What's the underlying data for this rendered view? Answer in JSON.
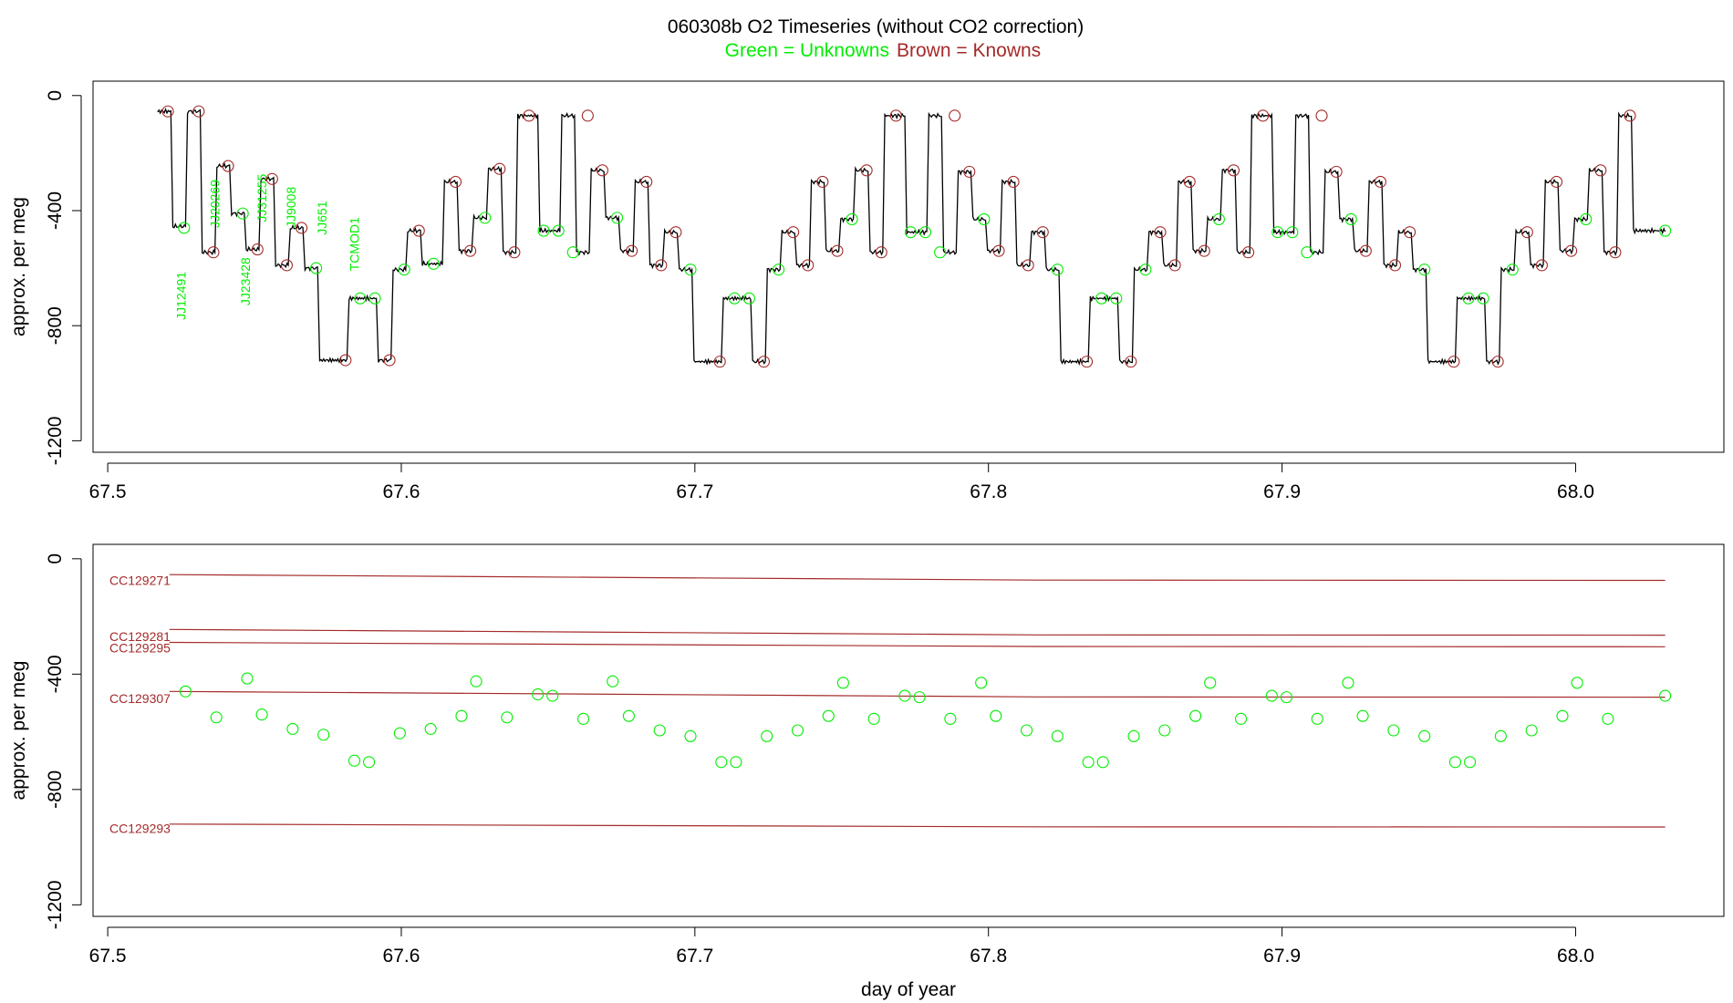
{
  "title": {
    "main": "060308b   O2 Timeseries (without CO2 correction)",
    "legend_unknowns": "Green = Unknowns",
    "legend_knowns": "Brown = Knowns"
  },
  "colors": {
    "unknown": "#00ee00",
    "known": "#a52a2a",
    "trace": "#000000",
    "axis": "#000000"
  },
  "chart_data": [
    {
      "type": "line",
      "title": "060308b   O2 Timeseries (without CO2 correction)",
      "ylabel": "approx. per meg",
      "xlabel": "",
      "xlim": [
        67.495,
        68.0505
      ],
      "ylim": [
        -1240,
        50
      ],
      "xticks": [
        67.5,
        67.6,
        67.7,
        67.8,
        67.9,
        68.0
      ],
      "xtick_labels": [
        "67.5",
        "67.6",
        "67.7",
        "67.8",
        "67.9",
        "68.0"
      ],
      "yticks": [
        0,
        -400,
        -800,
        -1200
      ],
      "ytick_labels": [
        "0",
        "-400",
        "-800",
        "-1200"
      ],
      "grid": false,
      "trace_schedule": [
        [
          67.517,
          -55
        ],
        [
          67.5215,
          -455
        ],
        [
          67.5265,
          -55
        ],
        [
          67.5315,
          -545
        ],
        [
          67.5365,
          -245
        ],
        [
          67.5415,
          -410
        ],
        [
          67.5465,
          -535
        ],
        [
          67.5515,
          -290
        ],
        [
          67.5565,
          -590
        ],
        [
          67.5615,
          -460
        ],
        [
          67.5665,
          -600
        ],
        [
          67.5715,
          -920
        ],
        [
          67.5815,
          -705
        ],
        [
          67.5915,
          -920
        ],
        [
          67.5965,
          -605
        ],
        [
          67.6015,
          -470
        ],
        [
          67.6065,
          -585
        ],
        [
          67.614,
          -300
        ],
        [
          67.619,
          -540
        ],
        [
          67.624,
          -425
        ],
        [
          67.629,
          -255
        ],
        [
          67.634,
          -545
        ],
        [
          67.639,
          -70
        ],
        [
          67.6465,
          -470
        ],
        [
          67.654,
          -70
        ],
        [
          67.659,
          -545
        ],
        [
          67.664,
          -260
        ],
        [
          67.669,
          -425
        ],
        [
          67.674,
          -540
        ],
        [
          67.679,
          -300
        ],
        [
          67.684,
          -590
        ],
        [
          67.689,
          -475
        ],
        [
          67.694,
          -605
        ],
        [
          67.699,
          -925
        ],
        [
          67.709,
          -705
        ],
        [
          67.719,
          -925
        ],
        [
          67.724,
          -605
        ],
        [
          67.729,
          -475
        ],
        [
          67.734,
          -590
        ],
        [
          67.739,
          -300
        ],
        [
          67.744,
          -540
        ],
        [
          67.749,
          -430
        ],
        [
          67.754,
          -260
        ],
        [
          67.759,
          -545
        ],
        [
          67.764,
          -70
        ],
        [
          67.7715,
          -475
        ],
        [
          67.779,
          -70
        ],
        [
          67.784,
          -545
        ],
        [
          67.789,
          -265
        ],
        [
          67.794,
          -430
        ],
        [
          67.799,
          -540
        ],
        [
          67.804,
          -300
        ],
        [
          67.809,
          -590
        ],
        [
          67.814,
          -475
        ],
        [
          67.819,
          -605
        ],
        [
          67.824,
          -925
        ],
        [
          67.834,
          -705
        ],
        [
          67.844,
          -925
        ],
        [
          67.849,
          -605
        ],
        [
          67.854,
          -475
        ],
        [
          67.859,
          -590
        ],
        [
          67.864,
          -300
        ],
        [
          67.869,
          -540
        ],
        [
          67.874,
          -430
        ],
        [
          67.879,
          -260
        ],
        [
          67.884,
          -545
        ],
        [
          67.889,
          -70
        ],
        [
          67.8965,
          -475
        ],
        [
          67.904,
          -70
        ],
        [
          67.909,
          -545
        ],
        [
          67.914,
          -265
        ],
        [
          67.919,
          -430
        ],
        [
          67.924,
          -540
        ],
        [
          67.929,
          -300
        ],
        [
          67.934,
          -590
        ],
        [
          67.939,
          -475
        ],
        [
          67.944,
          -605
        ],
        [
          67.949,
          -925
        ],
        [
          67.959,
          -705
        ],
        [
          67.969,
          -925
        ],
        [
          67.974,
          -605
        ],
        [
          67.979,
          -475
        ],
        [
          67.984,
          -590
        ],
        [
          67.989,
          -300
        ],
        [
          67.994,
          -540
        ],
        [
          67.999,
          -430
        ],
        [
          68.004,
          -260
        ],
        [
          68.009,
          -545
        ],
        [
          68.014,
          -70
        ],
        [
          68.019,
          -470
        ],
        [
          68.0305,
          -470
        ]
      ],
      "known_points": [
        {
          "x": 67.5205,
          "y": -55
        },
        {
          "x": 67.531,
          "y": -55
        },
        {
          "x": 67.536,
          "y": -545
        },
        {
          "x": 67.541,
          "y": -245
        },
        {
          "x": 67.551,
          "y": -535
        },
        {
          "x": 67.556,
          "y": -290
        },
        {
          "x": 67.561,
          "y": -590
        },
        {
          "x": 67.566,
          "y": -460
        },
        {
          "x": 67.581,
          "y": -920
        },
        {
          "x": 67.596,
          "y": -920
        },
        {
          "x": 67.606,
          "y": -470
        },
        {
          "x": 67.6185,
          "y": -300
        },
        {
          "x": 67.6235,
          "y": -540
        },
        {
          "x": 67.6335,
          "y": -255
        },
        {
          "x": 67.6385,
          "y": -545
        },
        {
          "x": 67.6435,
          "y": -70
        },
        {
          "x": 67.6635,
          "y": -70
        },
        {
          "x": 67.6685,
          "y": -260
        },
        {
          "x": 67.6785,
          "y": -540
        },
        {
          "x": 67.6835,
          "y": -300
        },
        {
          "x": 67.6885,
          "y": -590
        },
        {
          "x": 67.6935,
          "y": -475
        },
        {
          "x": 67.7085,
          "y": -925
        },
        {
          "x": 67.7235,
          "y": -925
        },
        {
          "x": 67.7335,
          "y": -475
        },
        {
          "x": 67.7385,
          "y": -590
        },
        {
          "x": 67.7435,
          "y": -300
        },
        {
          "x": 67.7485,
          "y": -540
        },
        {
          "x": 67.7585,
          "y": -260
        },
        {
          "x": 67.7635,
          "y": -545
        },
        {
          "x": 67.7685,
          "y": -70
        },
        {
          "x": 67.7885,
          "y": -70
        },
        {
          "x": 67.7935,
          "y": -265
        },
        {
          "x": 67.8035,
          "y": -540
        },
        {
          "x": 67.8085,
          "y": -300
        },
        {
          "x": 67.8135,
          "y": -590
        },
        {
          "x": 67.8185,
          "y": -475
        },
        {
          "x": 67.8335,
          "y": -925
        },
        {
          "x": 67.8485,
          "y": -925
        },
        {
          "x": 67.8585,
          "y": -475
        },
        {
          "x": 67.8635,
          "y": -590
        },
        {
          "x": 67.8685,
          "y": -300
        },
        {
          "x": 67.8735,
          "y": -540
        },
        {
          "x": 67.8835,
          "y": -260
        },
        {
          "x": 67.8885,
          "y": -545
        },
        {
          "x": 67.8935,
          "y": -70
        },
        {
          "x": 67.9135,
          "y": -70
        },
        {
          "x": 67.9185,
          "y": -265
        },
        {
          "x": 67.9285,
          "y": -540
        },
        {
          "x": 67.9335,
          "y": -300
        },
        {
          "x": 67.9385,
          "y": -590
        },
        {
          "x": 67.9435,
          "y": -475
        },
        {
          "x": 67.9585,
          "y": -925
        },
        {
          "x": 67.9735,
          "y": -925
        },
        {
          "x": 67.9835,
          "y": -475
        },
        {
          "x": 67.9885,
          "y": -590
        },
        {
          "x": 67.9935,
          "y": -300
        },
        {
          "x": 67.9985,
          "y": -540
        },
        {
          "x": 68.0085,
          "y": -260
        },
        {
          "x": 68.0135,
          "y": -545
        },
        {
          "x": 68.0185,
          "y": -70
        }
      ],
      "unknown_points": [
        {
          "x": 67.526,
          "y": -460
        },
        {
          "x": 67.546,
          "y": -410
        },
        {
          "x": 67.571,
          "y": -600
        },
        {
          "x": 67.586,
          "y": -705
        },
        {
          "x": 67.591,
          "y": -705
        },
        {
          "x": 67.601,
          "y": -605
        },
        {
          "x": 67.611,
          "y": -585
        },
        {
          "x": 67.6285,
          "y": -425
        },
        {
          "x": 67.6485,
          "y": -470
        },
        {
          "x": 67.6535,
          "y": -470
        },
        {
          "x": 67.6585,
          "y": -545
        },
        {
          "x": 67.6735,
          "y": -425
        },
        {
          "x": 67.6985,
          "y": -605
        },
        {
          "x": 67.7135,
          "y": -705
        },
        {
          "x": 67.7185,
          "y": -705
        },
        {
          "x": 67.7285,
          "y": -605
        },
        {
          "x": 67.7535,
          "y": -430
        },
        {
          "x": 67.7735,
          "y": -475
        },
        {
          "x": 67.7785,
          "y": -475
        },
        {
          "x": 67.7835,
          "y": -545
        },
        {
          "x": 67.7985,
          "y": -430
        },
        {
          "x": 67.8235,
          "y": -605
        },
        {
          "x": 67.8385,
          "y": -705
        },
        {
          "x": 67.8435,
          "y": -705
        },
        {
          "x": 67.8535,
          "y": -605
        },
        {
          "x": 67.8785,
          "y": -430
        },
        {
          "x": 67.8985,
          "y": -475
        },
        {
          "x": 67.9035,
          "y": -475
        },
        {
          "x": 67.9085,
          "y": -545
        },
        {
          "x": 67.9235,
          "y": -430
        },
        {
          "x": 67.9485,
          "y": -605
        },
        {
          "x": 67.9635,
          "y": -705
        },
        {
          "x": 67.9685,
          "y": -705
        },
        {
          "x": 67.9785,
          "y": -605
        },
        {
          "x": 68.0035,
          "y": -430
        },
        {
          "x": 68.0305,
          "y": -470
        }
      ],
      "annotations": [
        {
          "text": "JJ12491",
          "x": 67.5265,
          "y": -780
        },
        {
          "text": "JJ20269",
          "x": 67.538,
          "y": -460
        },
        {
          "text": "JJ23428",
          "x": 67.5485,
          "y": -730
        },
        {
          "text": "JJ31255",
          "x": 67.554,
          "y": -440
        },
        {
          "text": "JJ9008",
          "x": 67.564,
          "y": -460
        },
        {
          "text": "JJ651",
          "x": 67.5745,
          "y": -485
        },
        {
          "text": "TCMOD1",
          "x": 67.5855,
          "y": -610
        }
      ]
    },
    {
      "type": "scatter",
      "title": "",
      "ylabel": "approx. per meg",
      "xlabel": "day of year",
      "xlim": [
        67.495,
        68.0505
      ],
      "ylim": [
        -1240,
        50
      ],
      "xticks": [
        67.5,
        67.6,
        67.7,
        67.8,
        67.9,
        68.0
      ],
      "xtick_labels": [
        "67.5",
        "67.6",
        "67.7",
        "67.8",
        "67.9",
        "68.0"
      ],
      "yticks": [
        0,
        -400,
        -800,
        -1200
      ],
      "ytick_labels": [
        "0",
        "-400",
        "-800",
        "-1200"
      ],
      "grid": false,
      "known_lines": [
        {
          "name": "CC129271",
          "y_start": -55,
          "y_end": -75,
          "label_y": -90
        },
        {
          "name": "CC129281",
          "y_start": -245,
          "y_end": -265,
          "label_y": -285
        },
        {
          "name": "CC129295",
          "y_start": -290,
          "y_end": -305,
          "label_y": -325
        },
        {
          "name": "CC129307",
          "y_start": -460,
          "y_end": -480,
          "label_y": -500
        },
        {
          "name": "CC129293",
          "y_start": -920,
          "y_end": -930,
          "label_y": -950
        }
      ],
      "line_x": [
        67.521,
        68.0305
      ],
      "unknown_points": [
        {
          "x": 67.5265,
          "y": -460
        },
        {
          "x": 67.537,
          "y": -550
        },
        {
          "x": 67.5475,
          "y": -415
        },
        {
          "x": 67.5525,
          "y": -540
        },
        {
          "x": 67.563,
          "y": -590
        },
        {
          "x": 67.5735,
          "y": -610
        },
        {
          "x": 67.584,
          "y": -700
        },
        {
          "x": 67.589,
          "y": -705
        },
        {
          "x": 67.5995,
          "y": -605
        },
        {
          "x": 67.61,
          "y": -590
        },
        {
          "x": 67.6205,
          "y": -545
        },
        {
          "x": 67.6255,
          "y": -425
        },
        {
          "x": 67.636,
          "y": -550
        },
        {
          "x": 67.6465,
          "y": -470
        },
        {
          "x": 67.6515,
          "y": -475
        },
        {
          "x": 67.662,
          "y": -555
        },
        {
          "x": 67.672,
          "y": -425
        },
        {
          "x": 67.6775,
          "y": -545
        },
        {
          "x": 67.688,
          "y": -595
        },
        {
          "x": 67.6985,
          "y": -615
        },
        {
          "x": 67.709,
          "y": -705
        },
        {
          "x": 67.714,
          "y": -705
        },
        {
          "x": 67.7245,
          "y": -615
        },
        {
          "x": 67.735,
          "y": -595
        },
        {
          "x": 67.7455,
          "y": -545
        },
        {
          "x": 67.7505,
          "y": -430
        },
        {
          "x": 67.761,
          "y": -555
        },
        {
          "x": 67.7715,
          "y": -475
        },
        {
          "x": 67.7765,
          "y": -480
        },
        {
          "x": 67.787,
          "y": -555
        },
        {
          "x": 67.7975,
          "y": -430
        },
        {
          "x": 67.8025,
          "y": -545
        },
        {
          "x": 67.813,
          "y": -595
        },
        {
          "x": 67.8235,
          "y": -615
        },
        {
          "x": 67.834,
          "y": -705
        },
        {
          "x": 67.839,
          "y": -705
        },
        {
          "x": 67.8495,
          "y": -615
        },
        {
          "x": 67.86,
          "y": -595
        },
        {
          "x": 67.8705,
          "y": -545
        },
        {
          "x": 67.8755,
          "y": -430
        },
        {
          "x": 67.886,
          "y": -555
        },
        {
          "x": 67.8965,
          "y": -475
        },
        {
          "x": 67.9015,
          "y": -480
        },
        {
          "x": 67.912,
          "y": -555
        },
        {
          "x": 67.9225,
          "y": -430
        },
        {
          "x": 67.9275,
          "y": -545
        },
        {
          "x": 67.938,
          "y": -595
        },
        {
          "x": 67.9485,
          "y": -615
        },
        {
          "x": 67.959,
          "y": -705
        },
        {
          "x": 67.964,
          "y": -705
        },
        {
          "x": 67.9745,
          "y": -615
        },
        {
          "x": 67.985,
          "y": -595
        },
        {
          "x": 67.9955,
          "y": -545
        },
        {
          "x": 68.0005,
          "y": -430
        },
        {
          "x": 68.011,
          "y": -555
        },
        {
          "x": 68.0305,
          "y": -475
        }
      ]
    }
  ]
}
